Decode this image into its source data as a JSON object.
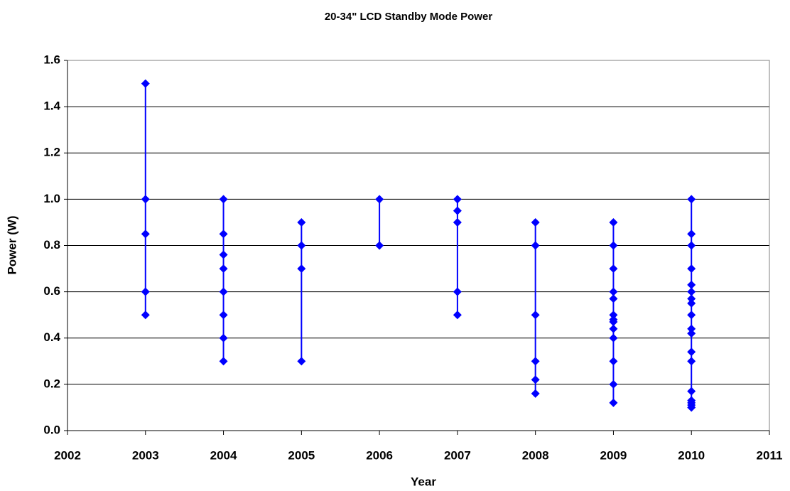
{
  "chart_data": {
    "type": "scatter",
    "title": "20-34\" LCD Standby Mode Power",
    "x_label": "Year",
    "y_label": "Power (W)",
    "series": [
      {
        "color": "#0000ff",
        "x": [
          2003,
          2003,
          2003,
          2003,
          2003,
          2004,
          2004,
          2004,
          2004,
          2004,
          2004,
          2004,
          2004,
          2005,
          2005,
          2005,
          2005,
          2006,
          2006,
          2007,
          2007,
          2007,
          2007,
          2007,
          2008,
          2008,
          2008,
          2008,
          2008,
          2008,
          2009,
          2009,
          2009,
          2009,
          2009,
          2009,
          2009,
          2009,
          2009,
          2009,
          2009,
          2009,
          2009,
          2010,
          2010,
          2010,
          2010,
          2010,
          2010,
          2010,
          2010,
          2010,
          2010,
          2010,
          2010,
          2010,
          2010,
          2010,
          2010,
          2010,
          2010
        ],
        "values": [
          1.5,
          1.0,
          0.85,
          0.6,
          0.5,
          1.0,
          0.85,
          0.76,
          0.7,
          0.6,
          0.5,
          0.4,
          0.3,
          0.9,
          0.8,
          0.7,
          0.3,
          1.0,
          0.8,
          1.0,
          0.95,
          0.9,
          0.6,
          0.5,
          0.9,
          0.8,
          0.5,
          0.3,
          0.22,
          0.16,
          0.9,
          0.8,
          0.7,
          0.6,
          0.57,
          0.5,
          0.48,
          0.47,
          0.44,
          0.4,
          0.3,
          0.2,
          0.12,
          1.0,
          0.85,
          0.8,
          0.7,
          0.63,
          0.6,
          0.57,
          0.55,
          0.5,
          0.44,
          0.42,
          0.34,
          0.3,
          0.17,
          0.13,
          0.12,
          0.11,
          0.1
        ]
      }
    ],
    "xlim": [
      2002,
      2011
    ],
    "xticks": [
      2002,
      2003,
      2004,
      2005,
      2006,
      2007,
      2008,
      2009,
      2010,
      2011
    ],
    "ylim": [
      0,
      1.6
    ],
    "yticks": [
      {
        "value": 0,
        "label": "0.0"
      },
      {
        "value": 0.2,
        "label": "0.2"
      },
      {
        "value": 0.4,
        "label": "0.4"
      },
      {
        "value": 0.6,
        "label": "0.6"
      },
      {
        "value": 0.8,
        "label": "0.8"
      },
      {
        "value": 1,
        "label": "1.0"
      },
      {
        "value": 1.2,
        "label": "1.2"
      },
      {
        "value": 1.4,
        "label": "1.4"
      },
      {
        "value": 1.6,
        "label": "1.6"
      }
    ],
    "grid": true
  }
}
